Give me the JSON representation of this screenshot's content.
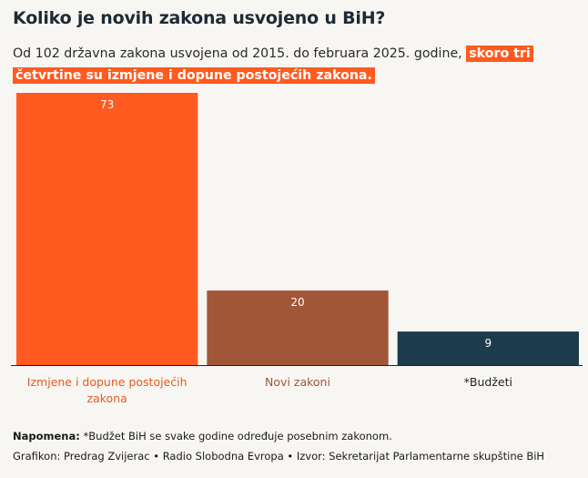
{
  "header": {
    "title": "Koliko je novih zakona usvojeno u BiH?",
    "subtitle_plain": "Od 102 državna zakona usvojena od 2015. do februara 2025. godine, ",
    "subtitle_highlight": "skoro tri četvrtine su izmjene i dopune postojećih zakona."
  },
  "chart_data": {
    "type": "bar",
    "title": "Koliko je novih zakona usvojeno u BiH?",
    "categories": [
      "Izmjene i dopune postojećih zakona",
      "Novi zakoni",
      "*Budžeti"
    ],
    "category_lines": [
      [
        "Izmjene i dopune postojećih",
        "zakona"
      ],
      [
        "Novi zakoni"
      ],
      [
        "*Budžeti"
      ]
    ],
    "values": [
      73,
      20,
      9
    ],
    "value_labels": [
      "73",
      "20",
      "9"
    ],
    "colors": [
      "#ff5a1f",
      "#a15637",
      "#1c3b4c"
    ],
    "label_colors": [
      "#e8581f",
      "#a15637",
      "#222222"
    ],
    "ylim": [
      0,
      73
    ],
    "xlabel": "",
    "ylabel": "",
    "grid": false
  },
  "footer": {
    "note_label": "Napomena:",
    "note_text": " *Budžet BiH se svake godine određuje posebnim zakonom.",
    "credit": "Grafikon: Predrag Zvijerac • Radio Slobodna Evropa • Izvor: Sekretarijat Parlamentarne skupštine BiH"
  }
}
